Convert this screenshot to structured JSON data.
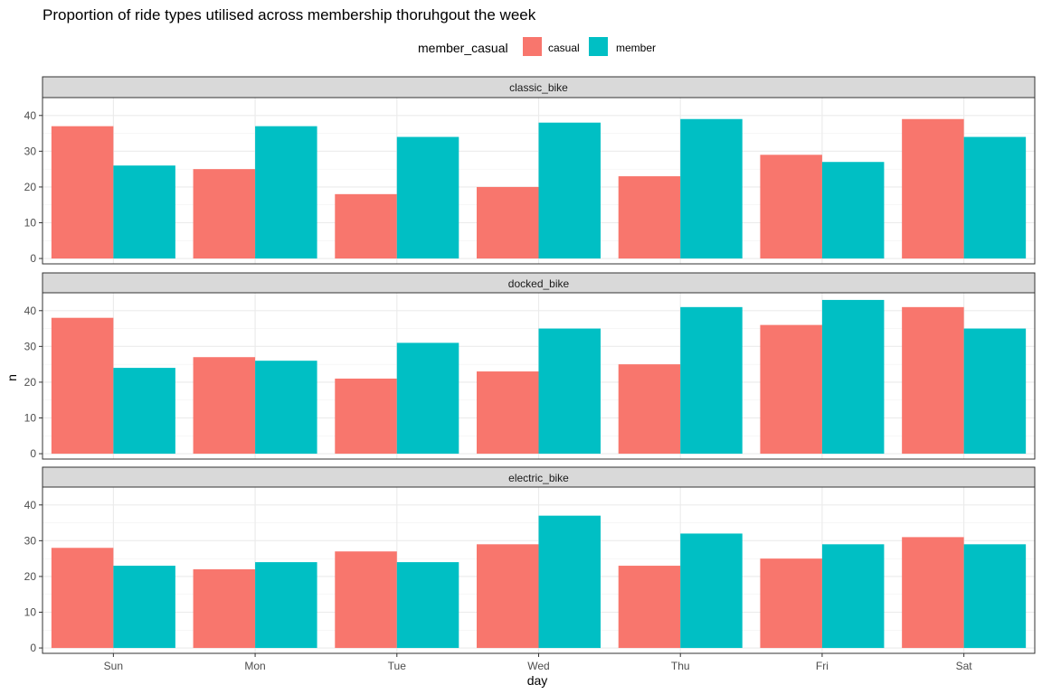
{
  "chart_data": {
    "type": "bar",
    "title": "Proportion of ride types utilised across membership thoruhgout the week",
    "xlabel": "day",
    "ylabel": "n",
    "ylim": [
      -1.5,
      45
    ],
    "yticks": [
      0,
      10,
      20,
      30,
      40
    ],
    "grid": true,
    "legend": {
      "title": "member_casual",
      "position": "top"
    },
    "categories": [
      "Sun",
      "Mon",
      "Tue",
      "Wed",
      "Thu",
      "Fri",
      "Sat"
    ],
    "series": [
      {
        "name": "casual",
        "color": "#F8766D"
      },
      {
        "name": "member",
        "color": "#00BFC4"
      }
    ],
    "facets": [
      {
        "label": "classic_bike",
        "values": {
          "casual": [
            37,
            25,
            18,
            20,
            23,
            29,
            39
          ],
          "member": [
            26,
            37,
            34,
            38,
            39,
            27,
            34
          ]
        }
      },
      {
        "label": "docked_bike",
        "values": {
          "casual": [
            38,
            27,
            21,
            23,
            25,
            36,
            41
          ],
          "member": [
            24,
            26,
            31,
            35,
            41,
            43,
            35
          ]
        }
      },
      {
        "label": "electric_bike",
        "values": {
          "casual": [
            28,
            22,
            27,
            29,
            23,
            25,
            31
          ],
          "member": [
            23,
            24,
            24,
            37,
            32,
            29,
            29
          ]
        }
      }
    ]
  }
}
